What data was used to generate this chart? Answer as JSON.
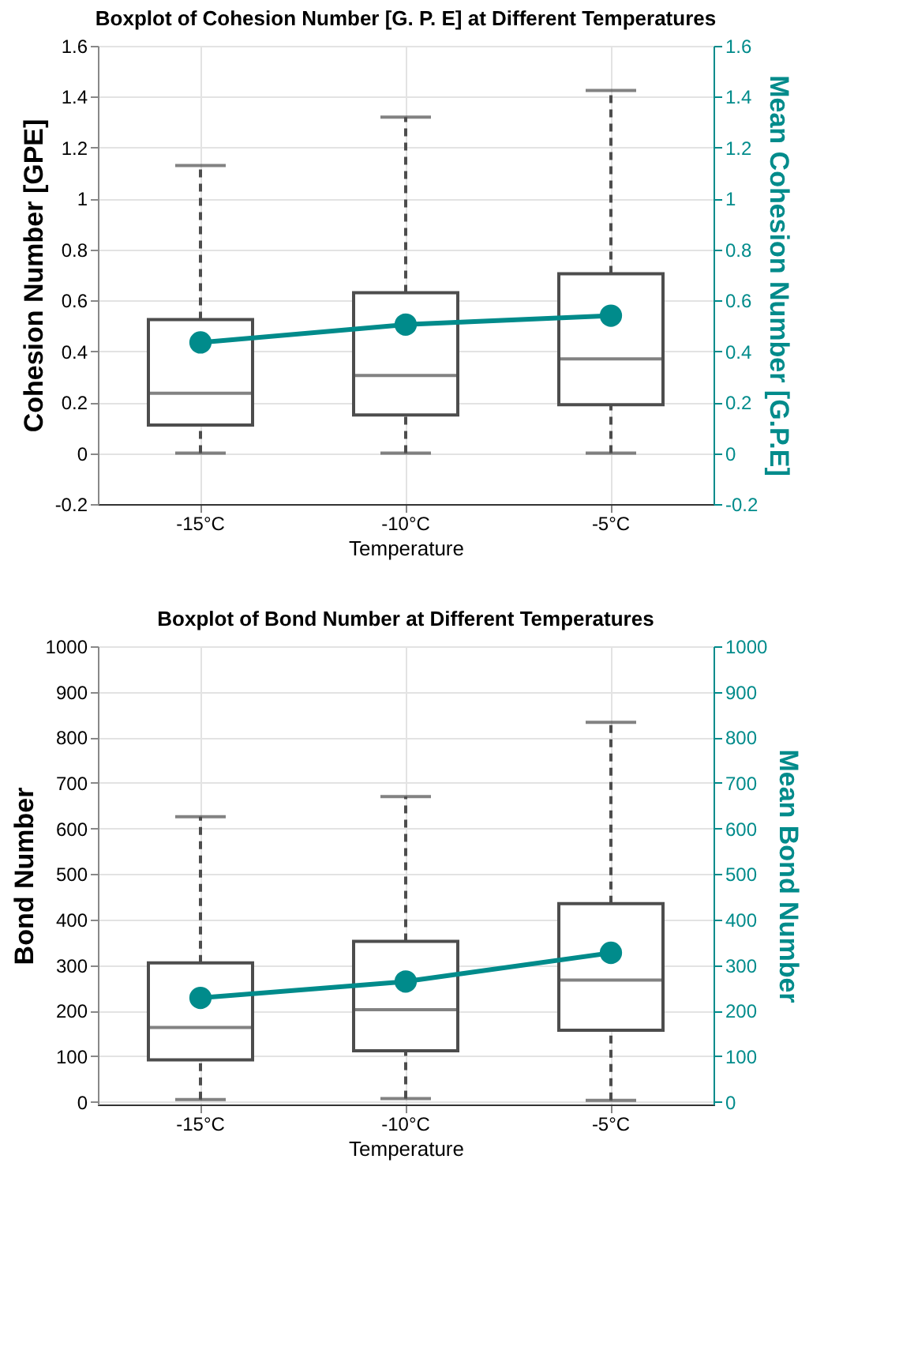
{
  "chart_data": [
    {
      "type": "box",
      "title": "Boxplot of Cohesion Number [G. P. E] at Different Temperatures",
      "xlabel": "Temperature",
      "ylabel": "Cohesion Number [GPE]",
      "y2label": "Mean Cohesion Number [G.P.E]",
      "categories": [
        "-15°C",
        "-10°C",
        "-5°C"
      ],
      "grid": true,
      "ylim": [
        -0.2,
        1.6
      ],
      "yticks": [
        -0.2,
        0,
        0.2,
        0.4,
        0.6,
        0.8,
        1,
        1.2,
        1.4,
        1.6
      ],
      "y2lim": [
        -0.2,
        1.6
      ],
      "y2ticks": [
        -0.2,
        0,
        0.2,
        0.4,
        0.6,
        0.8,
        1,
        1.2,
        1.4,
        1.6
      ],
      "series": [
        {
          "color": "#4d4d4d",
          "line_style": "dashed",
          "boxes": [
            {
              "low": 0,
              "q1": 0.11,
              "median": 0.235,
              "q3": 0.525,
              "high": 1.13
            },
            {
              "low": 0,
              "q1": 0.15,
              "median": 0.305,
              "q3": 0.63,
              "high": 1.32
            },
            {
              "low": 0,
              "q1": 0.19,
              "median": 0.37,
              "q3": 0.705,
              "high": 1.425
            }
          ]
        },
        {
          "type": "line",
          "axis": "y2",
          "color": "#008b8b",
          "marker": "circle",
          "values": [
            0.435,
            0.505,
            0.54
          ]
        }
      ]
    },
    {
      "type": "box",
      "title": "Boxplot of Bond Number at Different Temperatures",
      "xlabel": "Temperature",
      "ylabel": "Bond Number",
      "y2label": "Mean Bond Number",
      "categories": [
        "-15°C",
        "-10°C",
        "-5°C"
      ],
      "grid": true,
      "ylim": [
        -6,
        1000
      ],
      "yticks": [
        0,
        100,
        200,
        300,
        400,
        500,
        600,
        700,
        800,
        900,
        1000
      ],
      "y2lim": [
        -6,
        1000
      ],
      "y2ticks": [
        0,
        100,
        200,
        300,
        400,
        500,
        600,
        700,
        800,
        900,
        1000
      ],
      "series": [
        {
          "color": "#4d4d4d",
          "line_style": "dashed",
          "boxes": [
            {
              "low": 5,
              "q1": 92,
              "median": 163,
              "q3": 305,
              "high": 626
            },
            {
              "low": 7,
              "q1": 112,
              "median": 202,
              "q3": 352,
              "high": 670
            },
            {
              "low": 3,
              "q1": 157,
              "median": 267,
              "q3": 435,
              "high": 833
            }
          ]
        },
        {
          "type": "line",
          "axis": "y2",
          "color": "#008b8b",
          "marker": "circle",
          "values": [
            228,
            264,
            327
          ]
        }
      ]
    }
  ]
}
